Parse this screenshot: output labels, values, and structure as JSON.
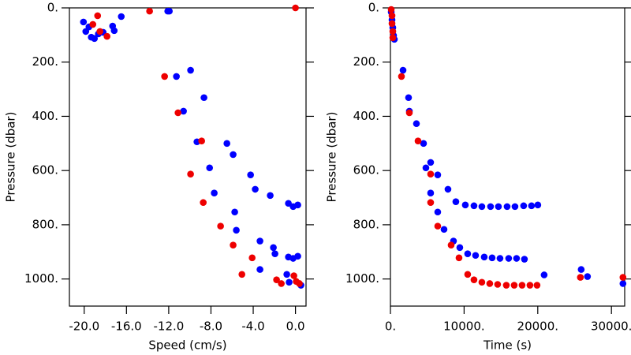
{
  "chart_data": [
    {
      "type": "scatter",
      "x_label": "Speed (cm/s)",
      "y_label": "Pressure (dbar)",
      "xlim": [
        -21.4,
        1.0
      ],
      "ylim": [
        0,
        1100
      ],
      "y_inverted": true,
      "xticks": [
        {
          "value": -20,
          "label": "-20.0"
        },
        {
          "value": -16,
          "label": "-16.0"
        },
        {
          "value": -12,
          "label": "-12.0"
        },
        {
          "value": -8,
          "label": "-8.0"
        },
        {
          "value": -4,
          "label": "-4.0"
        },
        {
          "value": 0,
          "label": "0.0"
        }
      ],
      "yticks": [
        {
          "value": 0,
          "label": "0."
        },
        {
          "value": 200,
          "label": "200."
        },
        {
          "value": 400,
          "label": "400."
        },
        {
          "value": 600,
          "label": "600."
        },
        {
          "value": 800,
          "label": "800."
        },
        {
          "value": 1000,
          "label": "1000."
        }
      ],
      "series": [
        {
          "color": "#0000ff",
          "x": [
            -20.07,
            -19.85,
            -19.55,
            -19.33,
            -19.03,
            -18.66,
            -18.21,
            -17.31,
            -17.16,
            -16.49,
            -12.09,
            -11.94,
            -11.27,
            -9.93,
            -10.6,
            -9.33,
            -8.66,
            -8.13,
            -7.69,
            -6.49,
            -5.9,
            -5.75,
            -5.6,
            -4.25,
            -3.81,
            -2.39,
            -3.36,
            -2.09,
            -1.94,
            -0.67,
            -0.22,
            0.22,
            -0.67,
            -0.22,
            0.22,
            -0.82,
            -3.36,
            -0.6,
            0.52
          ],
          "values": [
            52,
            87,
            70,
            108,
            113,
            96,
            90,
            67,
            84,
            32,
            12,
            12,
            253,
            230,
            381,
            494,
            331,
            590,
            683,
            500,
            541,
            753,
            820,
            616,
            669,
            692,
            860,
            884,
            907,
            721,
            733,
            727,
            919,
            924,
            916,
            983,
            965,
            1012,
            1023
          ]
        },
        {
          "color": "#ee0000",
          "x": [
            -18.73,
            -19.18,
            -18.51,
            -17.84,
            -13.81,
            0,
            -12.39,
            -11.12,
            -8.88,
            -9.93,
            -8.73,
            -7.09,
            -5.9,
            -4.1,
            -5.07,
            -1.79,
            -1.34,
            -0.15,
            0.07,
            0.37
          ],
          "values": [
            29,
            61,
            87,
            105,
            12,
            0,
            253,
            387,
            491,
            613,
            718,
            805,
            875,
            922,
            983,
            1003,
            1017,
            988,
            1009,
            1017
          ]
        }
      ]
    },
    {
      "type": "scatter",
      "x_label": "Time (s)",
      "y_label": "Pressure (dbar)",
      "xlim": [
        0,
        31800
      ],
      "ylim": [
        0,
        1100
      ],
      "y_inverted": true,
      "xticks": [
        {
          "value": 0,
          "label": "0."
        },
        {
          "value": 10000,
          "label": "10000."
        },
        {
          "value": 20000,
          "label": "20000."
        },
        {
          "value": 30000,
          "label": "30000."
        }
      ],
      "yticks": [
        {
          "value": 0,
          "label": "0."
        },
        {
          "value": 200,
          "label": "200."
        },
        {
          "value": 400,
          "label": "400."
        },
        {
          "value": 600,
          "label": "600."
        },
        {
          "value": 800,
          "label": "800."
        },
        {
          "value": 1000,
          "label": "1000."
        }
      ],
      "series": [
        {
          "color": "#0000ff",
          "x": [
            107,
            214,
            321,
            428,
            535,
            1712,
            2461,
            2568,
            3531,
            4494,
            4815,
            5457,
            5457,
            6420,
            7811,
            8881,
            10165,
            11342,
            12412,
            13589,
            14659,
            15836,
            16906,
            18083,
            19153,
            20009,
            6420,
            7276,
            8560,
            9416,
            10486,
            11556,
            12733,
            13803,
            14873,
            16050,
            17120,
            18190,
            20865,
            25894,
            26750,
            31565
          ],
          "values": [
            15,
            44,
            73,
            102,
            116,
            230,
            331,
            381,
            427,
            500,
            590,
            570,
            683,
            616,
            669,
            715,
            727,
            730,
            733,
            733,
            733,
            733,
            733,
            730,
            730,
            727,
            753,
            817,
            860,
            884,
            907,
            913,
            919,
            922,
            924,
            924,
            924,
            927,
            985,
            965,
            991,
            1017
          ]
        },
        {
          "color": "#ee0000",
          "x": [
            107,
            214,
            214,
            321,
            321,
            1498,
            2568,
            3745,
            5457,
            5457,
            6420,
            8239,
            9309,
            10486,
            11342,
            12412,
            13482,
            14552,
            15729,
            16799,
            17869,
            18939,
            19902,
            25787,
            31565
          ],
          "values": [
            6,
            29,
            58,
            87,
            110,
            253,
            387,
            491,
            613,
            718,
            805,
            875,
            922,
            983,
            1003,
            1012,
            1017,
            1020,
            1023,
            1023,
            1023,
            1023,
            1023,
            994,
            994
          ]
        }
      ]
    }
  ]
}
